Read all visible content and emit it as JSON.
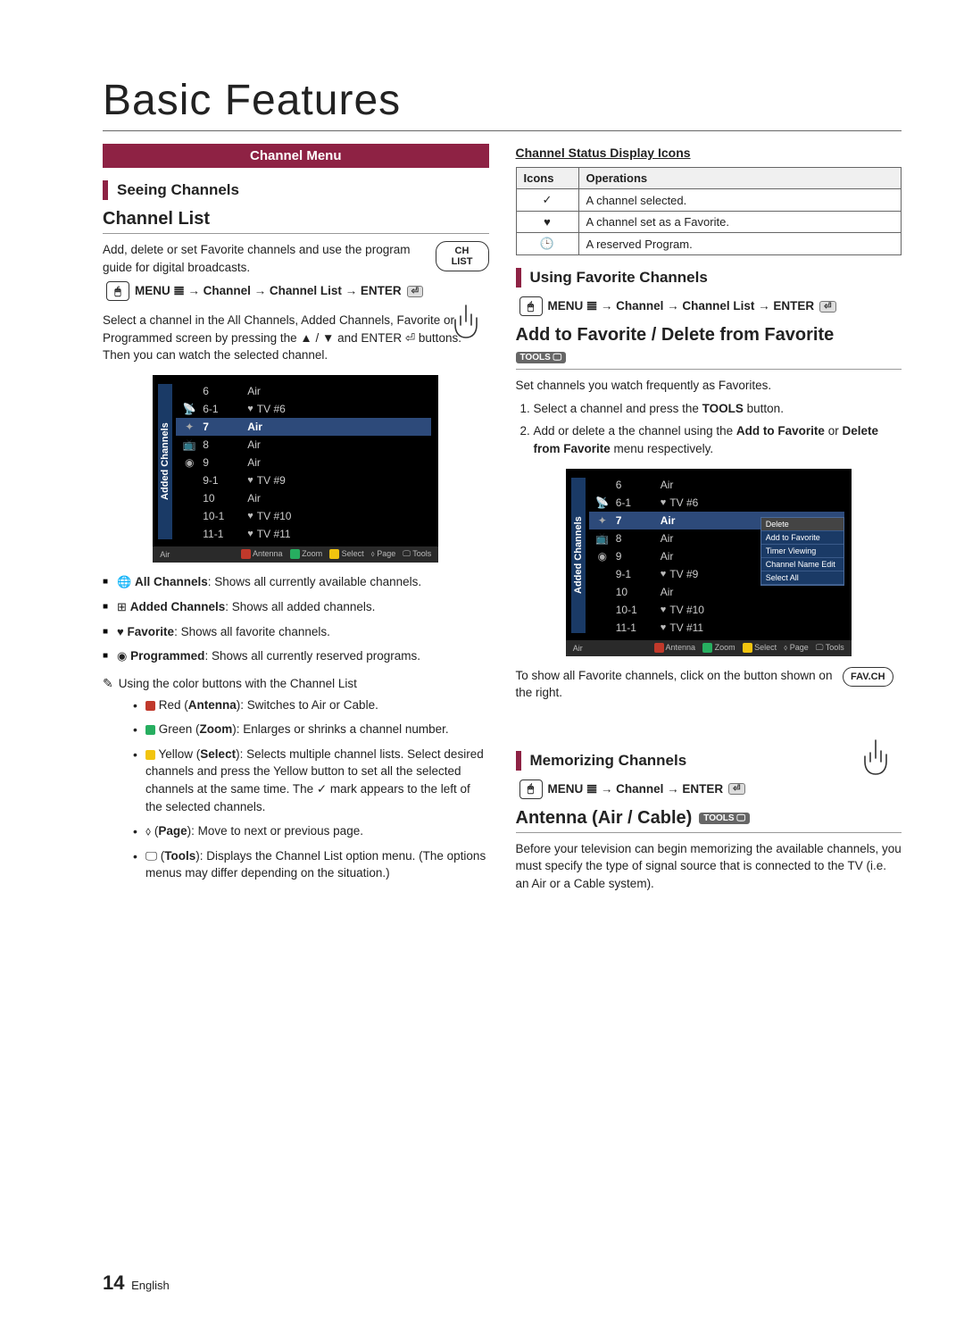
{
  "page": {
    "title": "Basic Features",
    "number": "14",
    "lang": "English"
  },
  "left": {
    "section_header": "Channel Menu",
    "subhead_seeing": "Seeing Channels",
    "h3_channel_list": "Channel List",
    "intro": "Add, delete or set Favorite channels and use the program guide for digital broadcasts.",
    "button_chlist": "CH LIST",
    "menu_path_1": "MENU 𝌆 → Channel → Channel List → ENTER",
    "select_text": "Select a channel in the All Channels, Added Channels, Favorite or Programmed screen by pressing the ▲ / ▼ and ENTER ⏎ buttons. Then you can watch the selected channel.",
    "bullets": [
      {
        "bold": "All Channels",
        "text": ": Shows all currently available channels."
      },
      {
        "bold": "Added Channels",
        "text": ": Shows all added channels."
      },
      {
        "bold": "Favorite",
        "text": ": Shows all favorite channels."
      },
      {
        "bold": "Programmed",
        "text": ": Shows all currently reserved programs."
      }
    ],
    "note_line": "Using the color buttons with the Channel List",
    "color_bullets": [
      {
        "color": "#c0392b",
        "bold": "Antenna",
        "prefix": "Red (",
        "text": "): Switches to Air or Cable."
      },
      {
        "color": "#27ae60",
        "bold": "Zoom",
        "prefix": "Green (",
        "text": "): Enlarges or shrinks a channel number."
      },
      {
        "color": "#f1c40f",
        "bold": "Select",
        "prefix": "Yellow (",
        "text": "): Selects multiple channel lists. Select desired channels and press the Yellow button to set all the selected channels at the same time. The ✓ mark appears to the left of the selected channels."
      },
      {
        "color": null,
        "bold": "Page",
        "prefix": "⬨ (",
        "text": "): Move to next or previous page."
      },
      {
        "color": null,
        "bold": "Tools",
        "prefix": "🖵 (",
        "text": "): Displays the Channel List option menu. (The options menus may differ depending on the situation.)"
      }
    ]
  },
  "right": {
    "status_title": "Channel Status Display Icons",
    "table": {
      "h1": "Icons",
      "h2": "Operations",
      "rows": [
        {
          "icon": "✓",
          "op": "A channel selected."
        },
        {
          "icon": "♥",
          "op": "A channel set as a Favorite."
        },
        {
          "icon": "🕒",
          "op": "A reserved Program."
        }
      ]
    },
    "subhead_fav": "Using Favorite Channels",
    "menu_path_2": "MENU 𝌆 → Channel → Channel List → ENTER",
    "h3_add_fav": "Add to Favorite / Delete from Favorite",
    "fav_intro": "Set channels you watch frequently as Favorites.",
    "steps": [
      "Select a channel and press the TOOLS button.",
      "Add or delete a the channel using the Add to Favorite or Delete from Favorite menu respectively."
    ],
    "tools_menu": {
      "t1": "Delete",
      "t2": "Add to Favorite",
      "t3": "Timer Viewing",
      "t4": "Channel Name Edit",
      "t5": "Select All"
    },
    "show_fav_text": "To show all Favorite channels, click on the button shown on the right.",
    "button_favch": "FAV.CH",
    "subhead_mem": "Memorizing Channels",
    "menu_path_3": "MENU 𝌆 → Channel → ENTER",
    "h3_antenna": "Antenna (Air / Cable)",
    "antenna_text": "Before your television can begin memorizing the available channels, you must specify the type of signal source that is connected to the TV (i.e. an Air or a Cable system)."
  },
  "tv": {
    "sidebar": "Added Channels",
    "footer_air": "Air",
    "footer": {
      "a": "Antenna",
      "z": "Zoom",
      "s": "Select",
      "p": "Page",
      "t": "Tools"
    },
    "rows": [
      {
        "icon": "",
        "num": "6",
        "label": "Air",
        "heart": false
      },
      {
        "icon": "📡",
        "num": "6-1",
        "label": "TV #6",
        "heart": true
      },
      {
        "icon": "✦",
        "num": "7",
        "label": "Air",
        "heart": false,
        "sel": true
      },
      {
        "icon": "📺",
        "num": "8",
        "label": "Air",
        "heart": false
      },
      {
        "icon": "◉",
        "num": "9",
        "label": "Air",
        "heart": false
      },
      {
        "icon": "",
        "num": "9-1",
        "label": "TV #9",
        "heart": true
      },
      {
        "icon": "",
        "num": "10",
        "label": "Air",
        "heart": false
      },
      {
        "icon": "",
        "num": "10-1",
        "label": "TV #10",
        "heart": true
      },
      {
        "icon": "",
        "num": "11-1",
        "label": "TV #11",
        "heart": true
      }
    ]
  }
}
